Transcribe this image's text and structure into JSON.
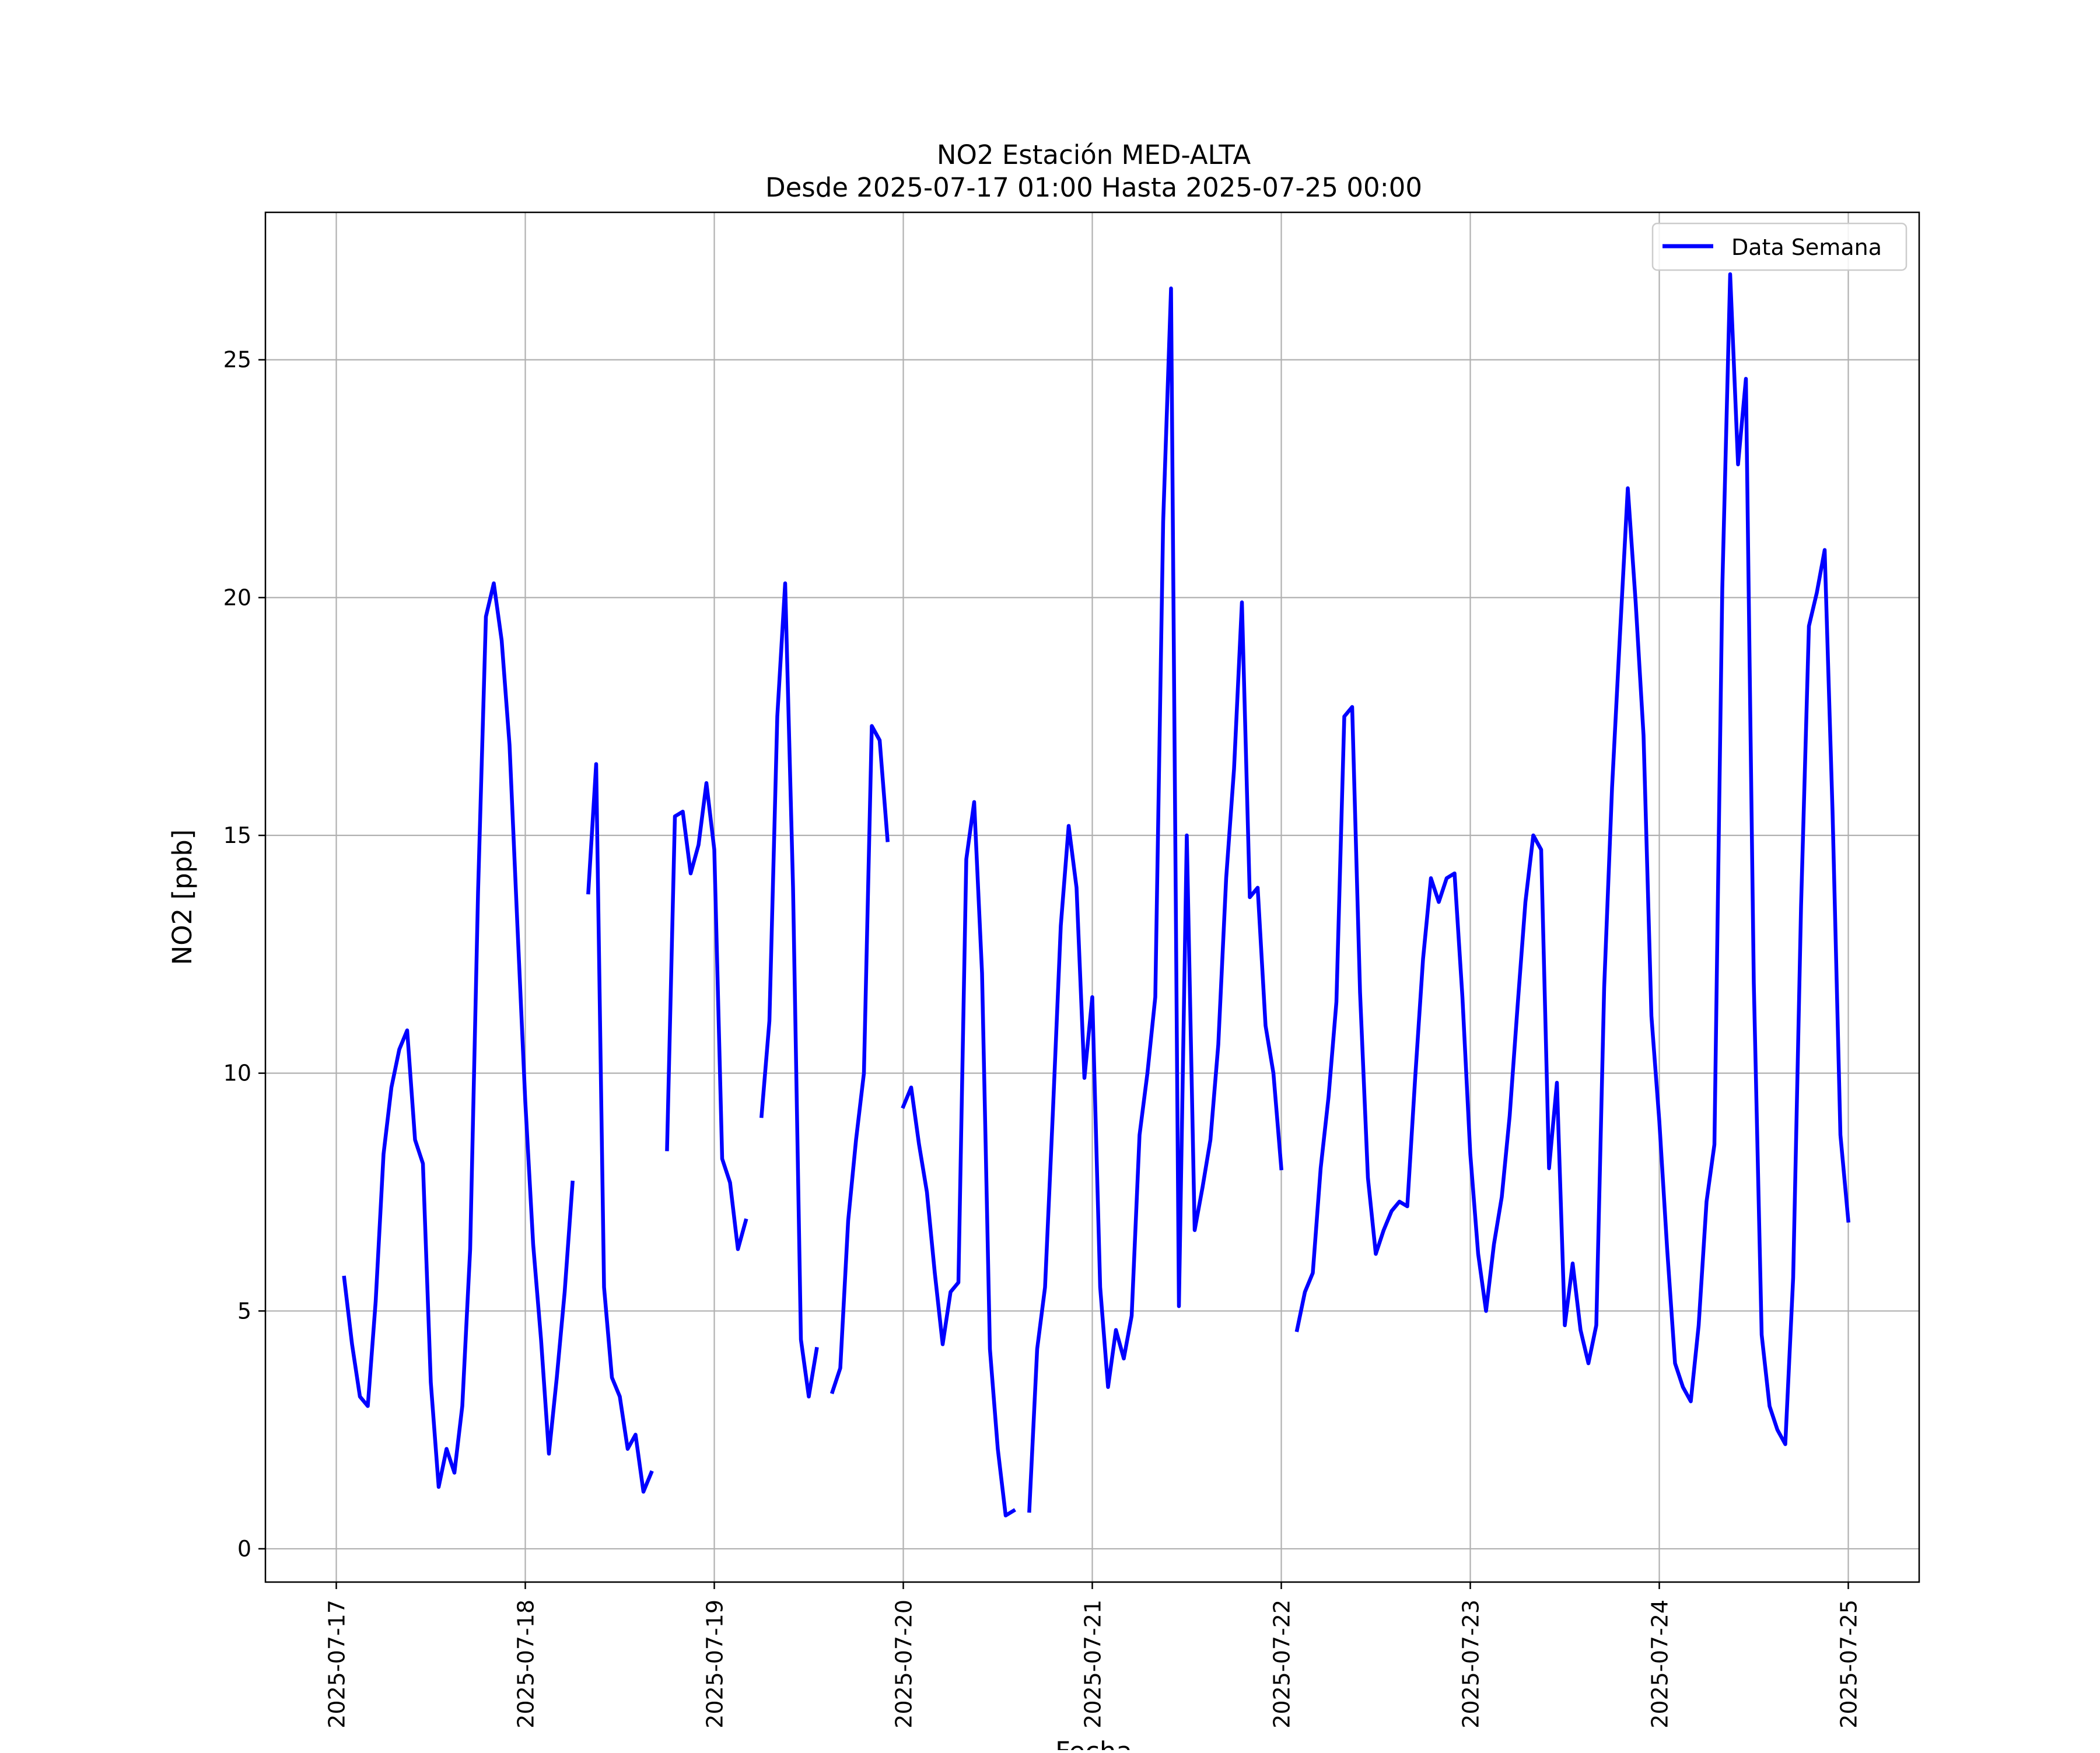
{
  "chart_data": {
    "type": "line",
    "title": "NO2 Estación MED-ALTA",
    "subtitle": "Desde 2025-07-17 01:00 Hasta 2025-07-25 00:00",
    "xlabel": "Fecha",
    "ylabel": "NO2 [ppb]",
    "xlim": [
      "2025-07-16 15:00",
      "2025-07-25 09:00"
    ],
    "ylim": [
      -0.7,
      28.1
    ],
    "grid": true,
    "legend_position": "top-right",
    "x_ticks": [
      "2025-07-17",
      "2025-07-18",
      "2025-07-19",
      "2025-07-20",
      "2025-07-21",
      "2025-07-22",
      "2025-07-23",
      "2025-07-24",
      "2025-07-25"
    ],
    "y_ticks": [
      0,
      5,
      10,
      15,
      20,
      25
    ],
    "series": [
      {
        "name": "Data Semana",
        "color": "#0000ff",
        "segments": [
          [
            [
              "2025-07-17 01:00",
              5.7
            ],
            [
              "2025-07-17 02:00",
              4.3
            ],
            [
              "2025-07-17 03:00",
              3.2
            ],
            [
              "2025-07-17 04:00",
              3.0
            ],
            [
              "2025-07-17 05:00",
              5.2
            ],
            [
              "2025-07-17 06:00",
              8.3
            ],
            [
              "2025-07-17 07:00",
              9.7
            ],
            [
              "2025-07-17 08:00",
              10.5
            ],
            [
              "2025-07-17 09:00",
              10.9
            ],
            [
              "2025-07-17 10:00",
              8.6
            ],
            [
              "2025-07-17 11:00",
              8.1
            ],
            [
              "2025-07-17 12:00",
              3.5
            ],
            [
              "2025-07-17 13:00",
              1.3
            ],
            [
              "2025-07-17 14:00",
              2.1
            ],
            [
              "2025-07-17 15:00",
              1.6
            ],
            [
              "2025-07-17 16:00",
              3.0
            ],
            [
              "2025-07-17 17:00",
              6.3
            ],
            [
              "2025-07-17 18:00",
              13.8
            ],
            [
              "2025-07-17 19:00",
              19.6
            ],
            [
              "2025-07-17 20:00",
              20.3
            ],
            [
              "2025-07-17 21:00",
              19.1
            ],
            [
              "2025-07-17 22:00",
              16.9
            ],
            [
              "2025-07-17 23:00",
              13.1
            ],
            [
              "2025-07-18 00:00",
              9.4
            ],
            [
              "2025-07-18 01:00",
              6.4
            ],
            [
              "2025-07-18 02:00",
              4.4
            ],
            [
              "2025-07-18 03:00",
              2.0
            ],
            [
              "2025-07-18 04:00",
              3.6
            ],
            [
              "2025-07-18 05:00",
              5.4
            ],
            [
              "2025-07-18 06:00",
              7.7
            ]
          ],
          [
            [
              "2025-07-18 08:00",
              13.8
            ],
            [
              "2025-07-18 09:00",
              16.5
            ],
            [
              "2025-07-18 10:00",
              5.5
            ],
            [
              "2025-07-18 11:00",
              3.6
            ],
            [
              "2025-07-18 12:00",
              3.2
            ],
            [
              "2025-07-18 13:00",
              2.1
            ],
            [
              "2025-07-18 14:00",
              2.4
            ],
            [
              "2025-07-18 15:00",
              1.2
            ],
            [
              "2025-07-18 16:00",
              1.6
            ]
          ],
          [
            [
              "2025-07-18 18:00",
              8.4
            ],
            [
              "2025-07-18 19:00",
              15.4
            ],
            [
              "2025-07-18 20:00",
              15.5
            ],
            [
              "2025-07-18 21:00",
              14.2
            ],
            [
              "2025-07-18 22:00",
              14.8
            ],
            [
              "2025-07-18 23:00",
              16.1
            ],
            [
              "2025-07-19 00:00",
              14.7
            ],
            [
              "2025-07-19 01:00",
              8.2
            ],
            [
              "2025-07-19 02:00",
              7.7
            ],
            [
              "2025-07-19 03:00",
              6.3
            ],
            [
              "2025-07-19 04:00",
              6.9
            ]
          ],
          [
            [
              "2025-07-19 06:00",
              9.1
            ],
            [
              "2025-07-19 07:00",
              11.1
            ],
            [
              "2025-07-19 08:00",
              17.5
            ],
            [
              "2025-07-19 09:00",
              20.3
            ],
            [
              "2025-07-19 10:00",
              13.9
            ],
            [
              "2025-07-19 11:00",
              4.4
            ],
            [
              "2025-07-19 12:00",
              3.2
            ],
            [
              "2025-07-19 13:00",
              4.2
            ]
          ],
          [
            [
              "2025-07-19 15:00",
              3.3
            ],
            [
              "2025-07-19 16:00",
              3.8
            ],
            [
              "2025-07-19 17:00",
              6.9
            ],
            [
              "2025-07-19 18:00",
              8.6
            ],
            [
              "2025-07-19 19:00",
              10.0
            ],
            [
              "2025-07-19 20:00",
              17.3
            ],
            [
              "2025-07-19 21:00",
              17.0
            ],
            [
              "2025-07-19 22:00",
              14.9
            ]
          ],
          [
            [
              "2025-07-20 00:00",
              9.3
            ],
            [
              "2025-07-20 01:00",
              9.7
            ],
            [
              "2025-07-20 02:00",
              8.5
            ],
            [
              "2025-07-20 03:00",
              7.5
            ],
            [
              "2025-07-20 04:00",
              5.8
            ],
            [
              "2025-07-20 05:00",
              4.3
            ],
            [
              "2025-07-20 06:00",
              5.4
            ],
            [
              "2025-07-20 07:00",
              5.6
            ],
            [
              "2025-07-20 08:00",
              14.5
            ],
            [
              "2025-07-20 09:00",
              15.7
            ],
            [
              "2025-07-20 10:00",
              12.1
            ],
            [
              "2025-07-20 11:00",
              4.2
            ],
            [
              "2025-07-20 12:00",
              2.1
            ],
            [
              "2025-07-20 13:00",
              0.7
            ],
            [
              "2025-07-20 14:00",
              0.8
            ]
          ],
          [
            [
              "2025-07-20 16:00",
              0.8
            ],
            [
              "2025-07-20 17:00",
              4.2
            ],
            [
              "2025-07-20 18:00",
              5.5
            ],
            [
              "2025-07-20 19:00",
              9.2
            ],
            [
              "2025-07-20 20:00",
              13.1
            ],
            [
              "2025-07-20 21:00",
              15.2
            ],
            [
              "2025-07-20 22:00",
              13.9
            ],
            [
              "2025-07-20 23:00",
              9.9
            ],
            [
              "2025-07-21 00:00",
              11.6
            ],
            [
              "2025-07-21 01:00",
              5.5
            ],
            [
              "2025-07-21 02:00",
              3.4
            ],
            [
              "2025-07-21 03:00",
              4.6
            ],
            [
              "2025-07-21 04:00",
              4.0
            ],
            [
              "2025-07-21 05:00",
              4.9
            ],
            [
              "2025-07-21 06:00",
              8.7
            ],
            [
              "2025-07-21 07:00",
              10.0
            ],
            [
              "2025-07-21 08:00",
              11.6
            ],
            [
              "2025-07-21 09:00",
              21.6
            ],
            [
              "2025-07-21 10:00",
              26.5
            ],
            [
              "2025-07-21 11:00",
              5.1
            ],
            [
              "2025-07-21 12:00",
              15.0
            ],
            [
              "2025-07-21 13:00",
              6.7
            ],
            [
              "2025-07-21 14:00",
              7.6
            ],
            [
              "2025-07-21 15:00",
              8.6
            ],
            [
              "2025-07-21 16:00",
              10.6
            ],
            [
              "2025-07-21 17:00",
              14.1
            ],
            [
              "2025-07-21 18:00",
              16.4
            ],
            [
              "2025-07-21 19:00",
              19.9
            ],
            [
              "2025-07-21 20:00",
              13.7
            ],
            [
              "2025-07-21 21:00",
              13.9
            ],
            [
              "2025-07-21 22:00",
              11.0
            ],
            [
              "2025-07-21 23:00",
              10.0
            ],
            [
              "2025-07-22 00:00",
              8.0
            ]
          ],
          [
            [
              "2025-07-22 02:00",
              4.6
            ],
            [
              "2025-07-22 03:00",
              5.4
            ],
            [
              "2025-07-22 04:00",
              5.8
            ],
            [
              "2025-07-22 05:00",
              8.0
            ],
            [
              "2025-07-22 06:00",
              9.5
            ],
            [
              "2025-07-22 07:00",
              11.5
            ],
            [
              "2025-07-22 08:00",
              17.5
            ],
            [
              "2025-07-22 09:00",
              17.7
            ],
            [
              "2025-07-22 10:00",
              11.7
            ],
            [
              "2025-07-22 11:00",
              7.8
            ],
            [
              "2025-07-22 12:00",
              6.2
            ],
            [
              "2025-07-22 13:00",
              6.7
            ],
            [
              "2025-07-22 14:00",
              7.1
            ],
            [
              "2025-07-22 15:00",
              7.3
            ],
            [
              "2025-07-22 16:00",
              7.2
            ],
            [
              "2025-07-22 17:00",
              9.9
            ],
            [
              "2025-07-22 18:00",
              12.4
            ],
            [
              "2025-07-22 19:00",
              14.1
            ],
            [
              "2025-07-22 20:00",
              13.6
            ],
            [
              "2025-07-22 21:00",
              14.1
            ],
            [
              "2025-07-22 22:00",
              14.2
            ],
            [
              "2025-07-22 23:00",
              11.6
            ],
            [
              "2025-07-23 00:00",
              8.3
            ],
            [
              "2025-07-23 01:00",
              6.2
            ],
            [
              "2025-07-23 02:00",
              5.0
            ],
            [
              "2025-07-23 03:00",
              6.4
            ],
            [
              "2025-07-23 04:00",
              7.4
            ],
            [
              "2025-07-23 05:00",
              9.1
            ],
            [
              "2025-07-23 06:00",
              11.4
            ],
            [
              "2025-07-23 07:00",
              13.6
            ],
            [
              "2025-07-23 08:00",
              15.0
            ],
            [
              "2025-07-23 09:00",
              14.7
            ],
            [
              "2025-07-23 10:00",
              8.0
            ],
            [
              "2025-07-23 11:00",
              9.8
            ],
            [
              "2025-07-23 12:00",
              4.7
            ],
            [
              "2025-07-23 13:00",
              6.0
            ],
            [
              "2025-07-23 14:00",
              4.6
            ],
            [
              "2025-07-23 15:00",
              3.9
            ],
            [
              "2025-07-23 16:00",
              4.7
            ],
            [
              "2025-07-23 17:00",
              11.8
            ],
            [
              "2025-07-23 18:00",
              16.0
            ],
            [
              "2025-07-23 19:00",
              19.2
            ],
            [
              "2025-07-23 20:00",
              22.3
            ],
            [
              "2025-07-23 21:00",
              19.9
            ],
            [
              "2025-07-23 22:00",
              17.1
            ],
            [
              "2025-07-23 23:00",
              11.2
            ],
            [
              "2025-07-24 00:00",
              9.0
            ],
            [
              "2025-07-24 01:00",
              6.3
            ],
            [
              "2025-07-24 02:00",
              3.9
            ],
            [
              "2025-07-24 03:00",
              3.4
            ],
            [
              "2025-07-24 04:00",
              3.1
            ],
            [
              "2025-07-24 05:00",
              4.7
            ],
            [
              "2025-07-24 06:00",
              7.3
            ],
            [
              "2025-07-24 07:00",
              8.5
            ],
            [
              "2025-07-24 08:00",
              20.2
            ],
            [
              "2025-07-24 09:00",
              26.8
            ],
            [
              "2025-07-24 10:00",
              22.8
            ],
            [
              "2025-07-24 11:00",
              24.6
            ],
            [
              "2025-07-24 12:00",
              11.9
            ],
            [
              "2025-07-24 13:00",
              4.5
            ],
            [
              "2025-07-24 14:00",
              3.0
            ],
            [
              "2025-07-24 15:00",
              2.5
            ],
            [
              "2025-07-24 16:00",
              2.2
            ],
            [
              "2025-07-24 17:00",
              5.7
            ],
            [
              "2025-07-24 18:00",
              13.5
            ],
            [
              "2025-07-24 19:00",
              19.4
            ],
            [
              "2025-07-24 20:00",
              20.1
            ],
            [
              "2025-07-24 21:00",
              21.0
            ],
            [
              "2025-07-24 22:00",
              15.5
            ],
            [
              "2025-07-24 23:00",
              8.7
            ],
            [
              "2025-07-25 00:00",
              6.9
            ]
          ]
        ]
      }
    ]
  }
}
